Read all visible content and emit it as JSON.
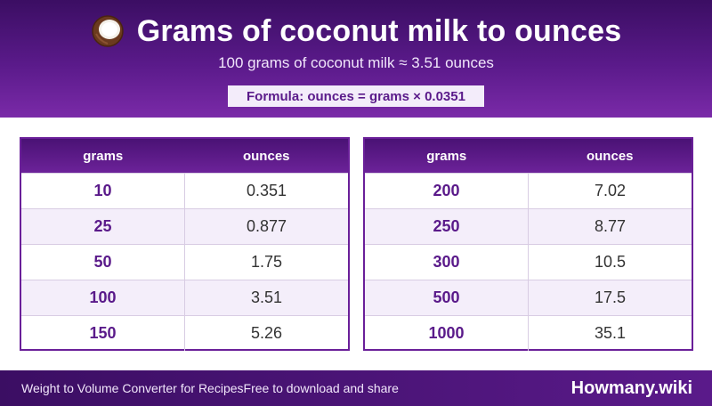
{
  "header": {
    "icon": "coconut-icon",
    "title": "Grams of coconut milk to ounces",
    "subtitle": "100 grams of coconut milk ≈ 3.51 ounces",
    "formula": "Formula: ounces = grams × 0.0351"
  },
  "tables": [
    {
      "headers": [
        "grams",
        "ounces"
      ],
      "rows": [
        {
          "grams": "10",
          "ounces": "0.351"
        },
        {
          "grams": "25",
          "ounces": "0.877"
        },
        {
          "grams": "50",
          "ounces": "1.75"
        },
        {
          "grams": "100",
          "ounces": "3.51"
        },
        {
          "grams": "150",
          "ounces": "5.26"
        }
      ]
    },
    {
      "headers": [
        "grams",
        "ounces"
      ],
      "rows": [
        {
          "grams": "200",
          "ounces": "7.02"
        },
        {
          "grams": "250",
          "ounces": "8.77"
        },
        {
          "grams": "300",
          "ounces": "10.5"
        },
        {
          "grams": "500",
          "ounces": "17.5"
        },
        {
          "grams": "1000",
          "ounces": "35.1"
        }
      ]
    }
  ],
  "footer": {
    "left_text_1": "Weight to Volume Converter for Recipes",
    "left_text_2": "Free to download and share",
    "brand": "Howmany.wiki"
  },
  "colors": {
    "header_purple": "#5a1a8a",
    "accent_purple": "#6a1f99",
    "row_alt": "#f4eefa"
  }
}
